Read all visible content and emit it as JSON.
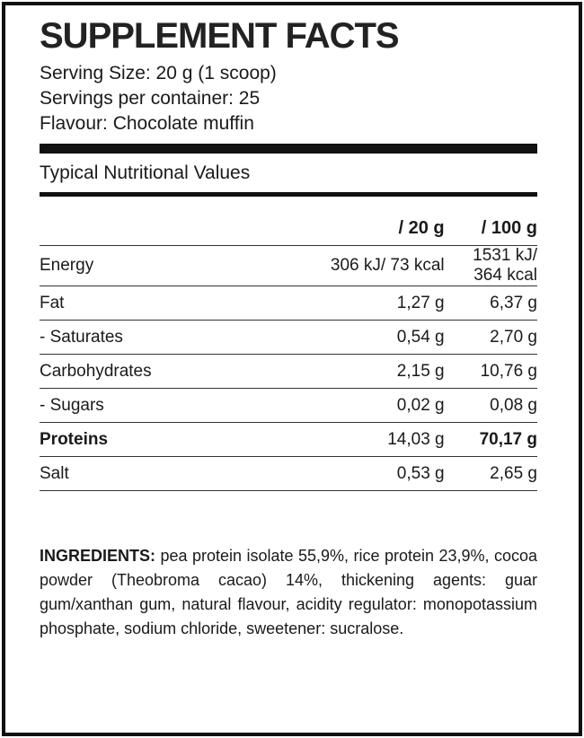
{
  "title": "SUPPLEMENT FACTS",
  "info": [
    "Serving Size: 20 g (1 scoop)",
    "Servings per container: 25",
    "Flavour: Chocolate muffin"
  ],
  "section_title": "Typical Nutritional Values",
  "table": {
    "headers": [
      "/ 20 g",
      "/ 100 g"
    ],
    "rows": [
      [
        "Energy",
        "306 kJ/ 73 kcal",
        "1531 kJ/ 364 kcal"
      ],
      [
        "Fat",
        "1,27 g",
        "6,37 g"
      ],
      [
        "- Saturates",
        "0,54 g",
        "2,70 g"
      ],
      [
        "Carbohydrates",
        "2,15 g",
        "10,76 g"
      ],
      [
        "- Sugars",
        "0,02 g",
        "0,08 g"
      ],
      [
        "Proteins",
        "14,03 g",
        "70,17 g"
      ],
      [
        "Salt",
        "0,53 g",
        "2,65 g"
      ]
    ]
  },
  "ingredients": {
    "label": "INGREDIENTS:",
    "text": "pea protein isolate 55,9%, rice protein 23,9%, cocoa powder (Theobroma cacao) 14%, thickening agents: guar gum/xanthan gum, natural flavour, acidity regulator: monopotassium phosphate, sodium chloride, sweetener: sucralose."
  }
}
